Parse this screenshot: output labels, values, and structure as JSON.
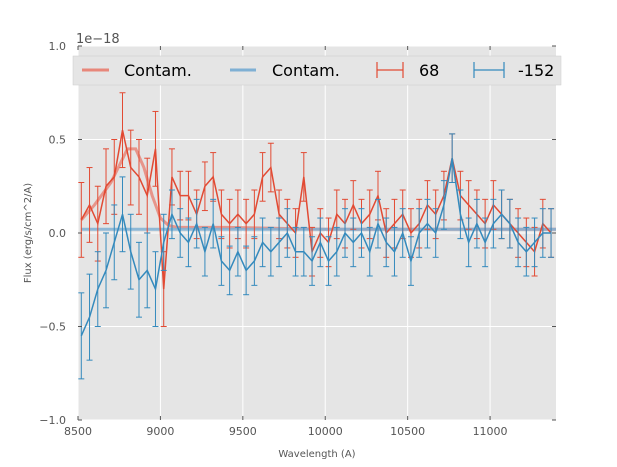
{
  "chart_data": {
    "type": "line",
    "title": "",
    "xlabel": "Wavelength (A)",
    "ylabel": "Flux (erg/s/cm^2/A)",
    "offset_label": "1e−18",
    "xlim": [
      8500,
      11400
    ],
    "ylim": [
      -1.0,
      1.0
    ],
    "xticks": [
      8500,
      9000,
      9500,
      10000,
      10500,
      11000
    ],
    "xtick_labels": [
      "8500",
      "9000",
      "9500",
      "10000",
      "10500",
      "11000"
    ],
    "yticks": [
      -1.0,
      -0.5,
      0.0,
      0.5,
      1.0
    ],
    "ytick_labels": [
      "−1.0",
      "−0.5",
      "0.0",
      "0.5",
      "1.0"
    ],
    "grid": true,
    "legend_placement": "top",
    "legend": [
      "Contam.",
      "Contam.",
      "68",
      "-152"
    ],
    "x": [
      8520,
      8570,
      8620,
      8670,
      8720,
      8770,
      8820,
      8870,
      8920,
      8970,
      9020,
      9070,
      9120,
      9170,
      9220,
      9270,
      9320,
      9370,
      9420,
      9470,
      9520,
      9570,
      9620,
      9670,
      9720,
      9770,
      9820,
      9870,
      9920,
      9970,
      10020,
      10070,
      10120,
      10170,
      10220,
      10270,
      10320,
      10370,
      10420,
      10470,
      10520,
      10570,
      10620,
      10670,
      10720,
      10770,
      10820,
      10870,
      10920,
      10970,
      11020,
      11070,
      11120,
      11170,
      11220,
      11270,
      11320,
      11370
    ],
    "series": [
      {
        "name": "68",
        "color": "#e24a33",
        "values": [
          0.07,
          0.15,
          0.05,
          0.25,
          0.3,
          0.55,
          0.35,
          0.3,
          0.2,
          0.45,
          -0.3,
          0.3,
          0.2,
          0.2,
          0.1,
          0.25,
          0.3,
          0.1,
          0.05,
          0.1,
          0.05,
          0.1,
          0.3,
          0.35,
          0.1,
          0.05,
          0.0,
          0.3,
          -0.1,
          0.0,
          -0.05,
          0.1,
          0.05,
          0.15,
          0.05,
          0.1,
          0.2,
          0.0,
          0.05,
          0.1,
          0.0,
          0.05,
          0.15,
          0.1,
          0.2,
          0.4,
          0.2,
          0.15,
          0.1,
          0.05,
          0.15,
          0.1,
          0.05,
          0.0,
          -0.05,
          -0.1,
          0.05,
          0.0
        ],
        "errors": [
          0.2,
          0.2,
          0.2,
          0.2,
          0.2,
          0.2,
          0.2,
          0.2,
          0.2,
          0.2,
          0.2,
          0.15,
          0.13,
          0.13,
          0.13,
          0.13,
          0.13,
          0.13,
          0.13,
          0.13,
          0.13,
          0.13,
          0.13,
          0.13,
          0.13,
          0.13,
          0.13,
          0.13,
          0.13,
          0.13,
          0.13,
          0.13,
          0.13,
          0.13,
          0.13,
          0.13,
          0.13,
          0.13,
          0.13,
          0.13,
          0.13,
          0.13,
          0.13,
          0.13,
          0.13,
          0.13,
          0.13,
          0.13,
          0.13,
          0.13,
          0.13,
          0.13,
          0.13,
          0.13,
          0.13,
          0.13,
          0.13,
          0.13
        ]
      },
      {
        "name": "-152",
        "color": "#348abd",
        "values": [
          -0.55,
          -0.45,
          -0.3,
          -0.2,
          -0.05,
          0.1,
          -0.1,
          -0.25,
          -0.2,
          -0.3,
          -0.05,
          0.1,
          0.0,
          -0.05,
          0.05,
          -0.1,
          0.05,
          -0.15,
          -0.2,
          -0.1,
          -0.2,
          -0.15,
          -0.05,
          -0.1,
          -0.05,
          0.0,
          -0.1,
          -0.1,
          -0.15,
          -0.05,
          -0.15,
          -0.1,
          0.0,
          -0.05,
          0.0,
          -0.1,
          0.05,
          -0.05,
          -0.1,
          0.0,
          -0.15,
          0.0,
          0.05,
          0.0,
          0.15,
          0.4,
          0.1,
          -0.05,
          0.05,
          -0.05,
          0.05,
          0.1,
          0.05,
          -0.05,
          -0.1,
          -0.05,
          0.0,
          0.0
        ],
        "errors": [
          0.23,
          0.23,
          0.2,
          0.2,
          0.2,
          0.2,
          0.2,
          0.2,
          0.2,
          0.2,
          0.15,
          0.13,
          0.13,
          0.13,
          0.13,
          0.13,
          0.13,
          0.13,
          0.13,
          0.13,
          0.13,
          0.13,
          0.13,
          0.13,
          0.13,
          0.13,
          0.13,
          0.13,
          0.13,
          0.13,
          0.13,
          0.13,
          0.13,
          0.13,
          0.13,
          0.13,
          0.13,
          0.13,
          0.13,
          0.13,
          0.13,
          0.13,
          0.13,
          0.13,
          0.13,
          0.13,
          0.13,
          0.13,
          0.13,
          0.13,
          0.13,
          0.13,
          0.13,
          0.13,
          0.13,
          0.13,
          0.13,
          0.13
        ]
      }
    ],
    "contam": [
      {
        "name": "Contam.",
        "color": "#e8877a",
        "x": [
          8520,
          8600,
          8700,
          8800,
          8850,
          8900,
          8950,
          9000,
          9050,
          9100,
          9400,
          10000,
          11000,
          11400
        ],
        "values": [
          0.07,
          0.15,
          0.27,
          0.45,
          0.45,
          0.35,
          0.2,
          0.08,
          0.04,
          0.03,
          0.03,
          0.02,
          0.02,
          0.02
        ]
      },
      {
        "name": "Contam.",
        "color": "#7fb0d4",
        "x": [
          8520,
          11400
        ],
        "values": [
          0.02,
          0.02
        ]
      }
    ]
  }
}
